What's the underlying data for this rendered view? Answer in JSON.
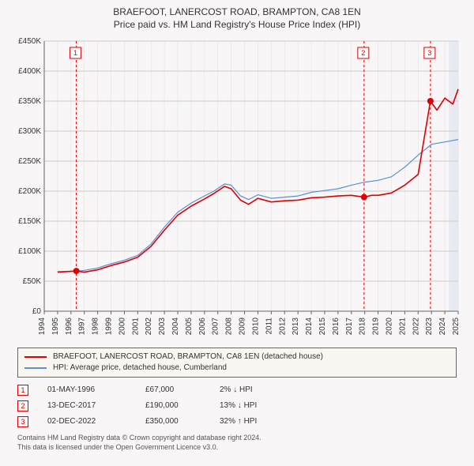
{
  "titles": {
    "line1": "BRAEFOOT, LANERCOST ROAD, BRAMPTON, CA8 1EN",
    "line2": "Price paid vs. HM Land Registry's House Price Index (HPI)"
  },
  "chart": {
    "type": "line",
    "background_color": "#f8f6f6",
    "plot_background": "#f8f6f6",
    "grid_color": "#cccccc",
    "axis_color": "#666666",
    "axis_fontsize": 10,
    "x": {
      "min": 1994,
      "max": 2025,
      "step": 1,
      "ticks": [
        1994,
        1995,
        1996,
        1997,
        1998,
        1999,
        2000,
        2001,
        2002,
        2003,
        2004,
        2005,
        2006,
        2007,
        2008,
        2009,
        2010,
        2011,
        2012,
        2013,
        2014,
        2015,
        2016,
        2017,
        2018,
        2019,
        2020,
        2021,
        2022,
        2023,
        2024,
        2025
      ],
      "tick_rotation": -90
    },
    "y": {
      "min": 0,
      "max": 450000,
      "step": 50000,
      "tick_labels": [
        "£0",
        "£50K",
        "£100K",
        "£150K",
        "£200K",
        "£250K",
        "£300K",
        "£350K",
        "£400K",
        "£450K"
      ]
    },
    "series": [
      {
        "name": "hpi",
        "color": "#5b8fd6",
        "width": 1.2,
        "points": [
          [
            1995.0,
            66000
          ],
          [
            1996.0,
            66000
          ],
          [
            1997.0,
            68000
          ],
          [
            1998.0,
            72000
          ],
          [
            1999.0,
            79000
          ],
          [
            2000.0,
            85000
          ],
          [
            2001.0,
            93000
          ],
          [
            2002.0,
            112000
          ],
          [
            2003.0,
            140000
          ],
          [
            2004.0,
            165000
          ],
          [
            2005.0,
            180000
          ],
          [
            2006.0,
            192000
          ],
          [
            2006.7,
            200000
          ],
          [
            2007.5,
            212000
          ],
          [
            2008.0,
            210000
          ],
          [
            2008.7,
            192000
          ],
          [
            2009.3,
            186000
          ],
          [
            2010.0,
            194000
          ],
          [
            2011.0,
            188000
          ],
          [
            2012.0,
            190000
          ],
          [
            2013.0,
            192000
          ],
          [
            2014.0,
            198000
          ],
          [
            2015.0,
            201000
          ],
          [
            2016.0,
            204000
          ],
          [
            2017.0,
            210000
          ],
          [
            2018.0,
            215000
          ],
          [
            2019.0,
            218000
          ],
          [
            2020.0,
            224000
          ],
          [
            2021.0,
            240000
          ],
          [
            2022.0,
            260000
          ],
          [
            2023.0,
            278000
          ],
          [
            2024.0,
            282000
          ],
          [
            2025.0,
            286000
          ]
        ]
      },
      {
        "name": "property",
        "color": "#e00000",
        "width": 1.6,
        "points": [
          [
            1995.0,
            65000
          ],
          [
            1996.4,
            67000
          ],
          [
            1997.0,
            65000
          ],
          [
            1998.0,
            69000
          ],
          [
            1999.0,
            76000
          ],
          [
            2000.0,
            82000
          ],
          [
            2001.0,
            90000
          ],
          [
            2002.0,
            108000
          ],
          [
            2003.0,
            135000
          ],
          [
            2004.0,
            160000
          ],
          [
            2005.0,
            175000
          ],
          [
            2006.0,
            187000
          ],
          [
            2006.7,
            196000
          ],
          [
            2007.5,
            208000
          ],
          [
            2008.0,
            204000
          ],
          [
            2008.7,
            185000
          ],
          [
            2009.3,
            178000
          ],
          [
            2010.0,
            188000
          ],
          [
            2011.0,
            182000
          ],
          [
            2012.0,
            184000
          ],
          [
            2013.0,
            185000
          ],
          [
            2014.0,
            189000
          ],
          [
            2015.0,
            190000
          ],
          [
            2016.0,
            192000
          ],
          [
            2017.0,
            193000
          ],
          [
            2017.95,
            190000
          ],
          [
            2018.5,
            193000
          ],
          [
            2019.0,
            193000
          ],
          [
            2020.0,
            197000
          ],
          [
            2021.0,
            210000
          ],
          [
            2022.0,
            228000
          ],
          [
            2022.92,
            350000
          ],
          [
            2023.4,
            335000
          ],
          [
            2024.0,
            355000
          ],
          [
            2024.6,
            345000
          ],
          [
            2025.0,
            370000
          ]
        ]
      }
    ],
    "event_lines": [
      {
        "x": 1996.4,
        "label": "1"
      },
      {
        "x": 2017.95,
        "label": "2"
      },
      {
        "x": 2022.92,
        "label": "3"
      }
    ],
    "event_line_color": "#e00000",
    "event_dash": "3,3",
    "marker_points": [
      {
        "x": 1996.4,
        "y": 67000
      },
      {
        "x": 2017.95,
        "y": 190000
      },
      {
        "x": 2022.92,
        "y": 350000
      }
    ],
    "marker_color": "#e00000",
    "marker_radius": 4,
    "end_shade": {
      "from": 2024.3,
      "to": 2025.0,
      "color": "#d8e0ec",
      "opacity": 0.55
    }
  },
  "legend": {
    "series1": "BRAEFOOT, LANERCOST ROAD, BRAMPTON, CA8 1EN (detached house)",
    "series1_color": "#e00000",
    "series2": "HPI: Average price, detached house, Cumberland",
    "series2_color": "#5b8fd6"
  },
  "sales": [
    {
      "num": "1",
      "date": "01-MAY-1996",
      "price": "£67,000",
      "delta": "2% ↓ HPI"
    },
    {
      "num": "2",
      "date": "13-DEC-2017",
      "price": "£190,000",
      "delta": "13% ↓ HPI"
    },
    {
      "num": "3",
      "date": "02-DEC-2022",
      "price": "£350,000",
      "delta": "32% ↑ HPI"
    }
  ],
  "footer": {
    "l1": "Contains HM Land Registry data © Crown copyright and database right 2024.",
    "l2": "This data is licensed under the Open Government Licence v3.0."
  }
}
